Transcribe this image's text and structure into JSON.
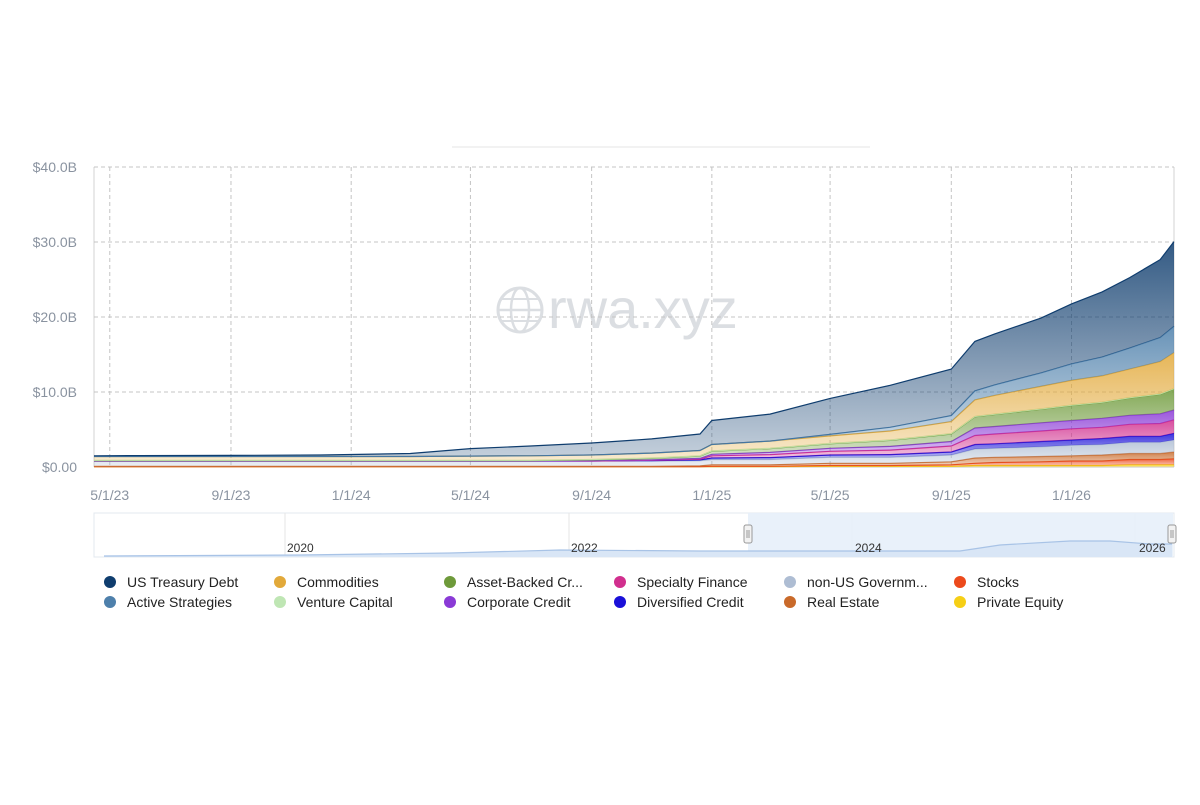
{
  "chart_data": {
    "type": "area",
    "stacked": true,
    "watermark": "rwa.xyz",
    "yticks": [
      "$0.00",
      "$10.0B",
      "$20.0B",
      "$30.0B",
      "$40.0B"
    ],
    "ylim": [
      0,
      40
    ],
    "xticks": [
      "5/1/23",
      "9/1/23",
      "1/1/24",
      "5/1/24",
      "9/1/24",
      "1/1/25",
      "5/1/25",
      "9/1/25",
      "1/1/26"
    ],
    "x": [
      "4/15/23",
      "6/1/23",
      "9/1/23",
      "12/1/23",
      "3/1/24",
      "5/1/24",
      "7/1/24",
      "9/1/24",
      "11/1/24",
      "12/20/24",
      "1/1/25",
      "3/1/25",
      "5/1/25",
      "7/1/25",
      "9/1/25",
      "9/25/25",
      "10/15/25",
      "12/1/25",
      "1/1/26",
      "2/1/26",
      "3/1/26",
      "4/1/26",
      "4/15/26"
    ],
    "series": [
      {
        "name": "US Treasury Debt",
        "color": "#0f3d6e",
        "values": [
          0.1,
          0.12,
          0.15,
          0.2,
          0.4,
          1.0,
          1.3,
          1.6,
          1.9,
          2.2,
          3.2,
          3.6,
          4.8,
          5.6,
          6.2,
          6.6,
          6.8,
          7.3,
          8.0,
          8.7,
          9.4,
          10.4,
          11.3
        ]
      },
      {
        "name": "Active Strategies",
        "color": "#4e80ab",
        "values": [
          0.0,
          0.0,
          0.0,
          0.0,
          0.0,
          0.0,
          0.0,
          0.0,
          0.0,
          0.0,
          0.0,
          0.0,
          0.2,
          0.5,
          0.8,
          1.2,
          1.4,
          1.8,
          2.2,
          2.5,
          2.8,
          3.2,
          3.5
        ]
      },
      {
        "name": "Commodities",
        "color": "#e2a93a",
        "values": [
          0.5,
          0.5,
          0.5,
          0.5,
          0.5,
          0.55,
          0.6,
          0.6,
          0.65,
          0.7,
          0.85,
          0.95,
          1.0,
          1.2,
          1.6,
          2.2,
          2.5,
          3.0,
          3.3,
          3.5,
          3.8,
          4.3,
          4.8
        ]
      },
      {
        "name": "Venture Capital",
        "color": "#bfe6b4",
        "values": [
          0.05,
          0.05,
          0.05,
          0.05,
          0.05,
          0.05,
          0.05,
          0.05,
          0.05,
          0.05,
          0.05,
          0.05,
          0.05,
          0.05,
          0.05,
          0.05,
          0.05,
          0.05,
          0.05,
          0.05,
          0.05,
          0.05,
          0.05
        ]
      },
      {
        "name": "Asset-Backed Cr...",
        "color": "#6e9a3a",
        "values": [
          0.05,
          0.05,
          0.05,
          0.05,
          0.05,
          0.05,
          0.05,
          0.1,
          0.2,
          0.3,
          0.4,
          0.5,
          0.6,
          0.8,
          1.0,
          1.5,
          1.6,
          1.8,
          2.0,
          2.1,
          2.3,
          2.6,
          2.8
        ]
      },
      {
        "name": "Corporate Credit",
        "color": "#8a3ad6",
        "values": [
          0.0,
          0.0,
          0.0,
          0.0,
          0.0,
          0.0,
          0.0,
          0.05,
          0.05,
          0.1,
          0.2,
          0.3,
          0.4,
          0.5,
          0.6,
          1.0,
          1.0,
          1.1,
          1.1,
          1.2,
          1.2,
          1.3,
          1.3
        ]
      },
      {
        "name": "Specialty Finance",
        "color": "#d12f8e",
        "values": [
          0.0,
          0.0,
          0.0,
          0.0,
          0.0,
          0.0,
          0.0,
          0.0,
          0.05,
          0.1,
          0.3,
          0.4,
          0.5,
          0.6,
          0.8,
          1.2,
          1.3,
          1.4,
          1.5,
          1.5,
          1.6,
          1.7,
          1.8
        ]
      },
      {
        "name": "Diversified Credit",
        "color": "#1a10d8",
        "values": [
          0.0,
          0.0,
          0.0,
          0.0,
          0.0,
          0.0,
          0.0,
          0.0,
          0.05,
          0.1,
          0.2,
          0.25,
          0.3,
          0.35,
          0.4,
          0.6,
          0.6,
          0.7,
          0.7,
          0.8,
          0.8,
          0.8,
          0.9
        ]
      },
      {
        "name": "non-US Governm...",
        "color": "#aebdd3",
        "values": [
          0.7,
          0.7,
          0.7,
          0.7,
          0.7,
          0.7,
          0.7,
          0.7,
          0.7,
          0.7,
          0.7,
          0.7,
          0.8,
          0.8,
          0.9,
          1.2,
          1.2,
          1.3,
          1.4,
          1.4,
          1.5,
          1.5,
          1.6
        ]
      },
      {
        "name": "Real Estate",
        "color": "#c96a2a",
        "values": [
          0.05,
          0.05,
          0.05,
          0.05,
          0.05,
          0.05,
          0.05,
          0.05,
          0.05,
          0.1,
          0.2,
          0.2,
          0.3,
          0.3,
          0.4,
          0.7,
          0.7,
          0.7,
          0.7,
          0.8,
          0.8,
          0.8,
          0.9
        ]
      },
      {
        "name": "Stocks",
        "color": "#ec4a1c",
        "values": [
          0.0,
          0.0,
          0.0,
          0.0,
          0.0,
          0.0,
          0.0,
          0.0,
          0.0,
          0.0,
          0.05,
          0.05,
          0.1,
          0.1,
          0.2,
          0.3,
          0.4,
          0.5,
          0.6,
          0.6,
          0.7,
          0.7,
          0.8
        ]
      },
      {
        "name": "Private Equity",
        "color": "#f6cf16",
        "values": [
          0.05,
          0.05,
          0.05,
          0.05,
          0.05,
          0.05,
          0.05,
          0.05,
          0.05,
          0.05,
          0.05,
          0.05,
          0.1,
          0.1,
          0.1,
          0.2,
          0.2,
          0.2,
          0.2,
          0.2,
          0.3,
          0.3,
          0.3
        ]
      }
    ],
    "navigator": {
      "xticks": [
        "2020",
        "2022",
        "2024",
        "2026"
      ]
    },
    "grid": true,
    "legend_position": "bottom"
  },
  "legend": {
    "order": [
      "US Treasury Debt",
      "Commodities",
      "Asset-Backed Cr...",
      "Specialty Finance",
      "non-US Governm...",
      "Stocks",
      "Active Strategies",
      "Venture Capital",
      "Corporate Credit",
      "Diversified Credit",
      "Real Estate",
      "Private Equity"
    ]
  }
}
